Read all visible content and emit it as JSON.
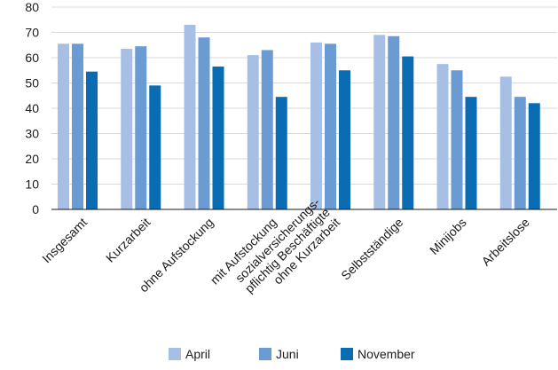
{
  "chart_data": {
    "type": "bar",
    "title": "",
    "xlabel": "",
    "ylabel": "",
    "ylim": [
      0,
      80
    ],
    "yticks": [
      0,
      10,
      20,
      30,
      40,
      50,
      60,
      70,
      80
    ],
    "grid": true,
    "legend_position": "bottom",
    "categories": [
      [
        "Insgesamt"
      ],
      [
        "Kurzarbeit"
      ],
      [
        "ohne Aufstockung"
      ],
      [
        "mit Aufstockung"
      ],
      [
        "sozialversicherungs-",
        "pflichtig Beschäftigte",
        "ohne Kurzarbeit"
      ],
      [
        "Selbstständige"
      ],
      [
        "Minijobs"
      ],
      [
        "Arbeitslose"
      ]
    ],
    "series": [
      {
        "name": "April",
        "color": "#a7bfe4",
        "values": [
          65.5,
          63.5,
          73,
          61,
          66,
          69,
          57.5,
          52.5
        ]
      },
      {
        "name": "Juni",
        "color": "#6a9bd2",
        "values": [
          65.5,
          64.5,
          68,
          63,
          65.5,
          68.5,
          55,
          44.5
        ]
      },
      {
        "name": "November",
        "color": "#0a6db3",
        "values": [
          54.5,
          49,
          56.5,
          44.5,
          55,
          60.5,
          44.5,
          42
        ]
      }
    ]
  }
}
